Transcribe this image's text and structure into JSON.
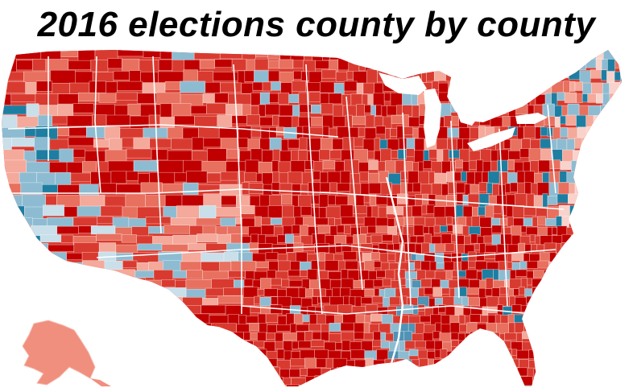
{
  "title": "2016 elections county by county",
  "colors": {
    "strong_red": "#c00000",
    "red": "#d93a2f",
    "medium_red": "#e8705f",
    "light_red": "#f4a99b",
    "pale_red": "#f9d3cb",
    "pale_blue": "#c9dfea",
    "light_blue": "#8dbcd2",
    "blue": "#4f93b5",
    "teal_blue": "#1e7ea1",
    "border": "#ffffff",
    "background": "#ffffff"
  }
}
